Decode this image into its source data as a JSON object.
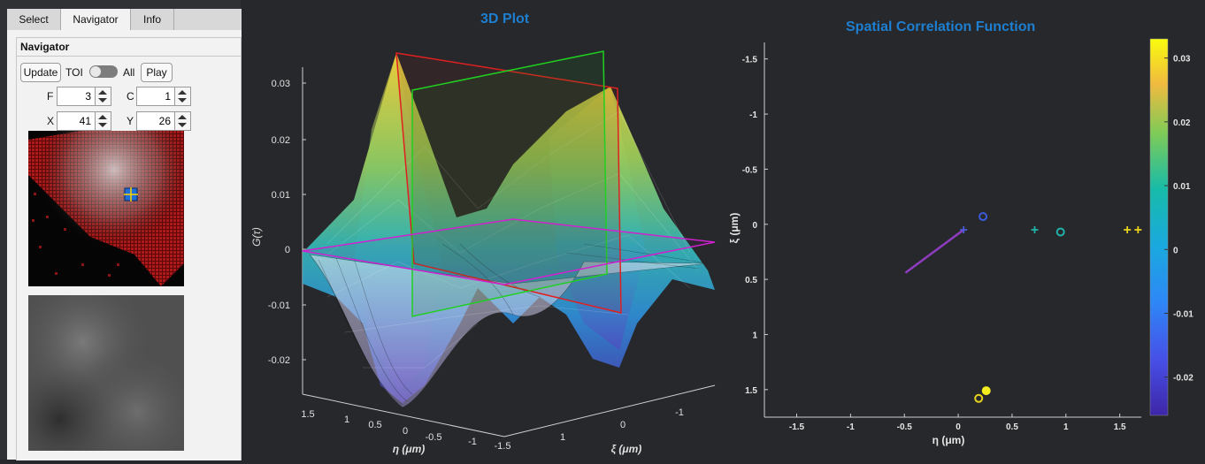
{
  "tabs": [
    {
      "label": "Select"
    },
    {
      "label": "Navigator"
    },
    {
      "label": "Info"
    }
  ],
  "navigator": {
    "title": "Navigator",
    "update_label": "Update",
    "toi_label": "TOI",
    "all_label": "All",
    "play_label": "Play",
    "f_label": "F",
    "f_value": "3",
    "c_label": "C",
    "c_value": "1",
    "x_label": "X",
    "x_value": "41",
    "y_label": "Y",
    "y_value": "26"
  },
  "plot3d": {
    "title": "3D Plot",
    "zlabel": "G(τ)",
    "xlabel": "η (μm)",
    "ylabel": "ξ (μm)",
    "z_ticks": [
      "0.03",
      "0.02",
      "0.01",
      "0",
      "-0.01",
      "-0.02"
    ],
    "eta_ticks": [
      "1.5",
      "1",
      "0.5",
      "0",
      "-0.5",
      "-1",
      "-1.5"
    ],
    "xi_ticks": [
      "1",
      "0",
      "-1"
    ]
  },
  "chart_data": {
    "type": "scatter",
    "title": "Spatial Correlation Function",
    "xlabel": "η (μm)",
    "ylabel": "ξ (μm)",
    "xlim": [
      -1.8,
      1.7
    ],
    "ylim": [
      1.75,
      -1.65
    ],
    "xticks": [
      "-1.5",
      "-1",
      "-0.5",
      "0",
      "0.5",
      "1",
      "1.5"
    ],
    "yticks": [
      "-1.5",
      "-1",
      "-0.5",
      "0",
      "0.5",
      "1",
      "1.5"
    ],
    "colorbar_ticks": [
      "0.03",
      "0.02",
      "0.01",
      "0",
      "-0.01",
      "-0.02"
    ],
    "colorbar_range": [
      -0.026,
      0.033
    ],
    "points": [
      {
        "marker": "circle-open",
        "x": 0.23,
        "y": -0.07,
        "color": "#3b5bdb"
      },
      {
        "marker": "plus",
        "x": 0.05,
        "y": 0.05,
        "color": "#4d5bd8"
      },
      {
        "marker": "plus",
        "x": 0.71,
        "y": 0.05,
        "color": "#20b2aa"
      },
      {
        "marker": "circle-open",
        "x": 0.95,
        "y": 0.07,
        "color": "#20b2aa"
      },
      {
        "marker": "plus",
        "x": 1.57,
        "y": 0.05,
        "color": "#e6d21e"
      },
      {
        "marker": "plus",
        "x": 1.67,
        "y": 0.05,
        "color": "#e6d21e"
      },
      {
        "marker": "circle-filled",
        "x": 0.26,
        "y": 1.51,
        "color": "#f5ee1e"
      },
      {
        "marker": "circle-open",
        "x": 0.19,
        "y": 1.58,
        "color": "#e6d21e"
      }
    ],
    "line": {
      "x": [
        -0.49,
        0.05
      ],
      "y": [
        0.44,
        0.05
      ],
      "color": "#8e3dc0"
    }
  },
  "colors": {
    "accent_title": "#1e7fd0",
    "background": "#26282b"
  }
}
